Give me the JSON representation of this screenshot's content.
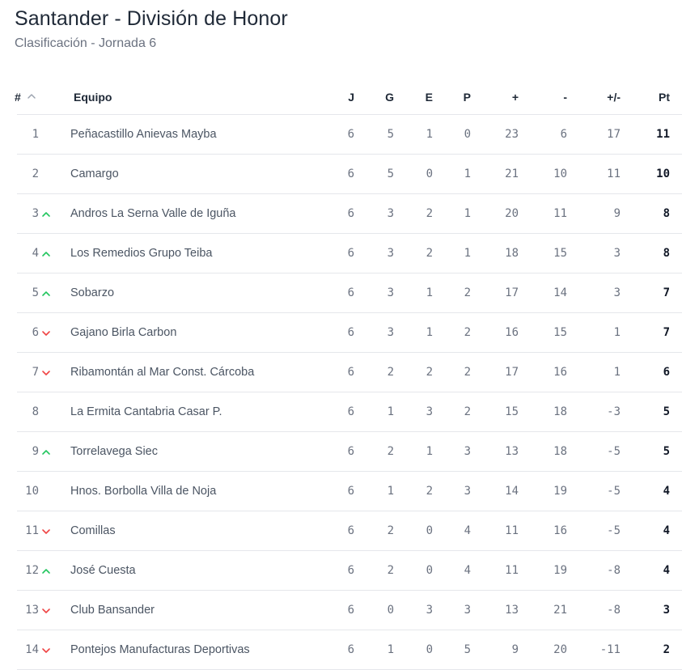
{
  "header": {
    "title": "Santander - División de Honor",
    "subtitle": "Clasificación - Jornada 6"
  },
  "table": {
    "columns": {
      "pos": "#",
      "team": "Equipo",
      "played": "J",
      "won": "G",
      "drawn": "E",
      "lost": "P",
      "goals_for": "+",
      "goals_against": "-",
      "goal_diff": "+/-",
      "points": "Pt"
    },
    "sort": {
      "column": "pos",
      "direction": "ascending",
      "icon": "chevron-up-icon"
    },
    "colors": {
      "up": "#22c55e",
      "down": "#ef4444"
    },
    "rows": [
      {
        "pos": "1",
        "trend": "none",
        "team": "Peñacastillo Anievas Mayba",
        "j": "6",
        "g": "5",
        "e": "1",
        "p": "0",
        "gf": "23",
        "ga": "6",
        "diff": "17",
        "pts": "11"
      },
      {
        "pos": "2",
        "trend": "none",
        "team": "Camargo",
        "j": "6",
        "g": "5",
        "e": "0",
        "p": "1",
        "gf": "21",
        "ga": "10",
        "diff": "11",
        "pts": "10"
      },
      {
        "pos": "3",
        "trend": "up",
        "team": "Andros La Serna Valle de Iguña",
        "j": "6",
        "g": "3",
        "e": "2",
        "p": "1",
        "gf": "20",
        "ga": "11",
        "diff": "9",
        "pts": "8"
      },
      {
        "pos": "4",
        "trend": "up",
        "team": "Los Remedios Grupo Teiba",
        "j": "6",
        "g": "3",
        "e": "2",
        "p": "1",
        "gf": "18",
        "ga": "15",
        "diff": "3",
        "pts": "8"
      },
      {
        "pos": "5",
        "trend": "up",
        "team": "Sobarzo",
        "j": "6",
        "g": "3",
        "e": "1",
        "p": "2",
        "gf": "17",
        "ga": "14",
        "diff": "3",
        "pts": "7"
      },
      {
        "pos": "6",
        "trend": "down",
        "team": "Gajano Birla Carbon",
        "j": "6",
        "g": "3",
        "e": "1",
        "p": "2",
        "gf": "16",
        "ga": "15",
        "diff": "1",
        "pts": "7"
      },
      {
        "pos": "7",
        "trend": "down",
        "team": "Ribamontán al Mar Const. Cárcoba",
        "j": "6",
        "g": "2",
        "e": "2",
        "p": "2",
        "gf": "17",
        "ga": "16",
        "diff": "1",
        "pts": "6"
      },
      {
        "pos": "8",
        "trend": "none",
        "team": "La Ermita Cantabria Casar P.",
        "j": "6",
        "g": "1",
        "e": "3",
        "p": "2",
        "gf": "15",
        "ga": "18",
        "diff": "-3",
        "pts": "5"
      },
      {
        "pos": "9",
        "trend": "up",
        "team": "Torrelavega Siec",
        "j": "6",
        "g": "2",
        "e": "1",
        "p": "3",
        "gf": "13",
        "ga": "18",
        "diff": "-5",
        "pts": "5"
      },
      {
        "pos": "10",
        "trend": "none",
        "team": "Hnos. Borbolla Villa de Noja",
        "j": "6",
        "g": "1",
        "e": "2",
        "p": "3",
        "gf": "14",
        "ga": "19",
        "diff": "-5",
        "pts": "4"
      },
      {
        "pos": "11",
        "trend": "down",
        "team": "Comillas",
        "j": "6",
        "g": "2",
        "e": "0",
        "p": "4",
        "gf": "11",
        "ga": "16",
        "diff": "-5",
        "pts": "4"
      },
      {
        "pos": "12",
        "trend": "up",
        "team": "José Cuesta",
        "j": "6",
        "g": "2",
        "e": "0",
        "p": "4",
        "gf": "11",
        "ga": "19",
        "diff": "-8",
        "pts": "4"
      },
      {
        "pos": "13",
        "trend": "down",
        "team": "Club Bansander",
        "j": "6",
        "g": "0",
        "e": "3",
        "p": "3",
        "gf": "13",
        "ga": "21",
        "diff": "-8",
        "pts": "3"
      },
      {
        "pos": "14",
        "trend": "down",
        "team": "Pontejos Manufacturas Deportivas",
        "j": "6",
        "g": "1",
        "e": "0",
        "p": "5",
        "gf": "9",
        "ga": "20",
        "diff": "-11",
        "pts": "2"
      }
    ]
  }
}
